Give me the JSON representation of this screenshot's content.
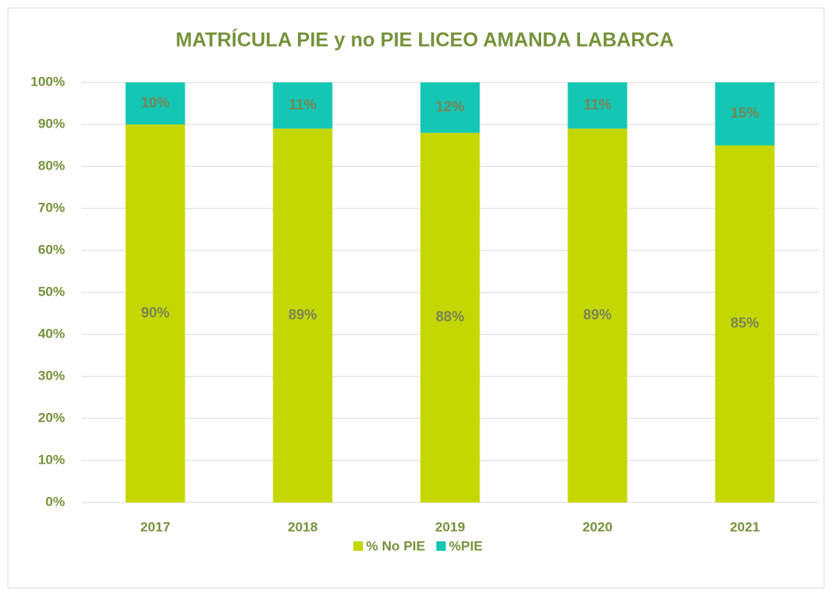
{
  "chart_data": {
    "type": "stacked_bar",
    "title": "MATRÍCULA PIE y no PIE LICEO AMANDA LABARCA",
    "categories": [
      "2017",
      "2018",
      "2019",
      "2020",
      "2021"
    ],
    "series": [
      {
        "name": "% No PIE",
        "color": "#c4d700",
        "values": [
          90,
          89,
          88,
          89,
          85
        ],
        "value_labels": [
          "90%",
          "89%",
          "88%",
          "89%",
          "85%"
        ]
      },
      {
        "name": "%PIE",
        "color": "#14c6b4",
        "values": [
          10,
          11,
          12,
          11,
          15
        ],
        "value_labels": [
          "10%",
          "11%",
          "12%",
          "11%",
          "15%"
        ]
      }
    ],
    "ylim": [
      0,
      100
    ],
    "yticks": [
      {
        "value": 0,
        "label": "0%"
      },
      {
        "value": 10,
        "label": "10%"
      },
      {
        "value": 20,
        "label": "20%"
      },
      {
        "value": 30,
        "label": "30%"
      },
      {
        "value": 40,
        "label": "40%"
      },
      {
        "value": 50,
        "label": "50%"
      },
      {
        "value": 60,
        "label": "60%"
      },
      {
        "value": 70,
        "label": "70%"
      },
      {
        "value": 80,
        "label": "80%"
      },
      {
        "value": 90,
        "label": "90%"
      },
      {
        "value": 100,
        "label": "100%"
      }
    ],
    "grid": true,
    "legend": "bottom"
  }
}
